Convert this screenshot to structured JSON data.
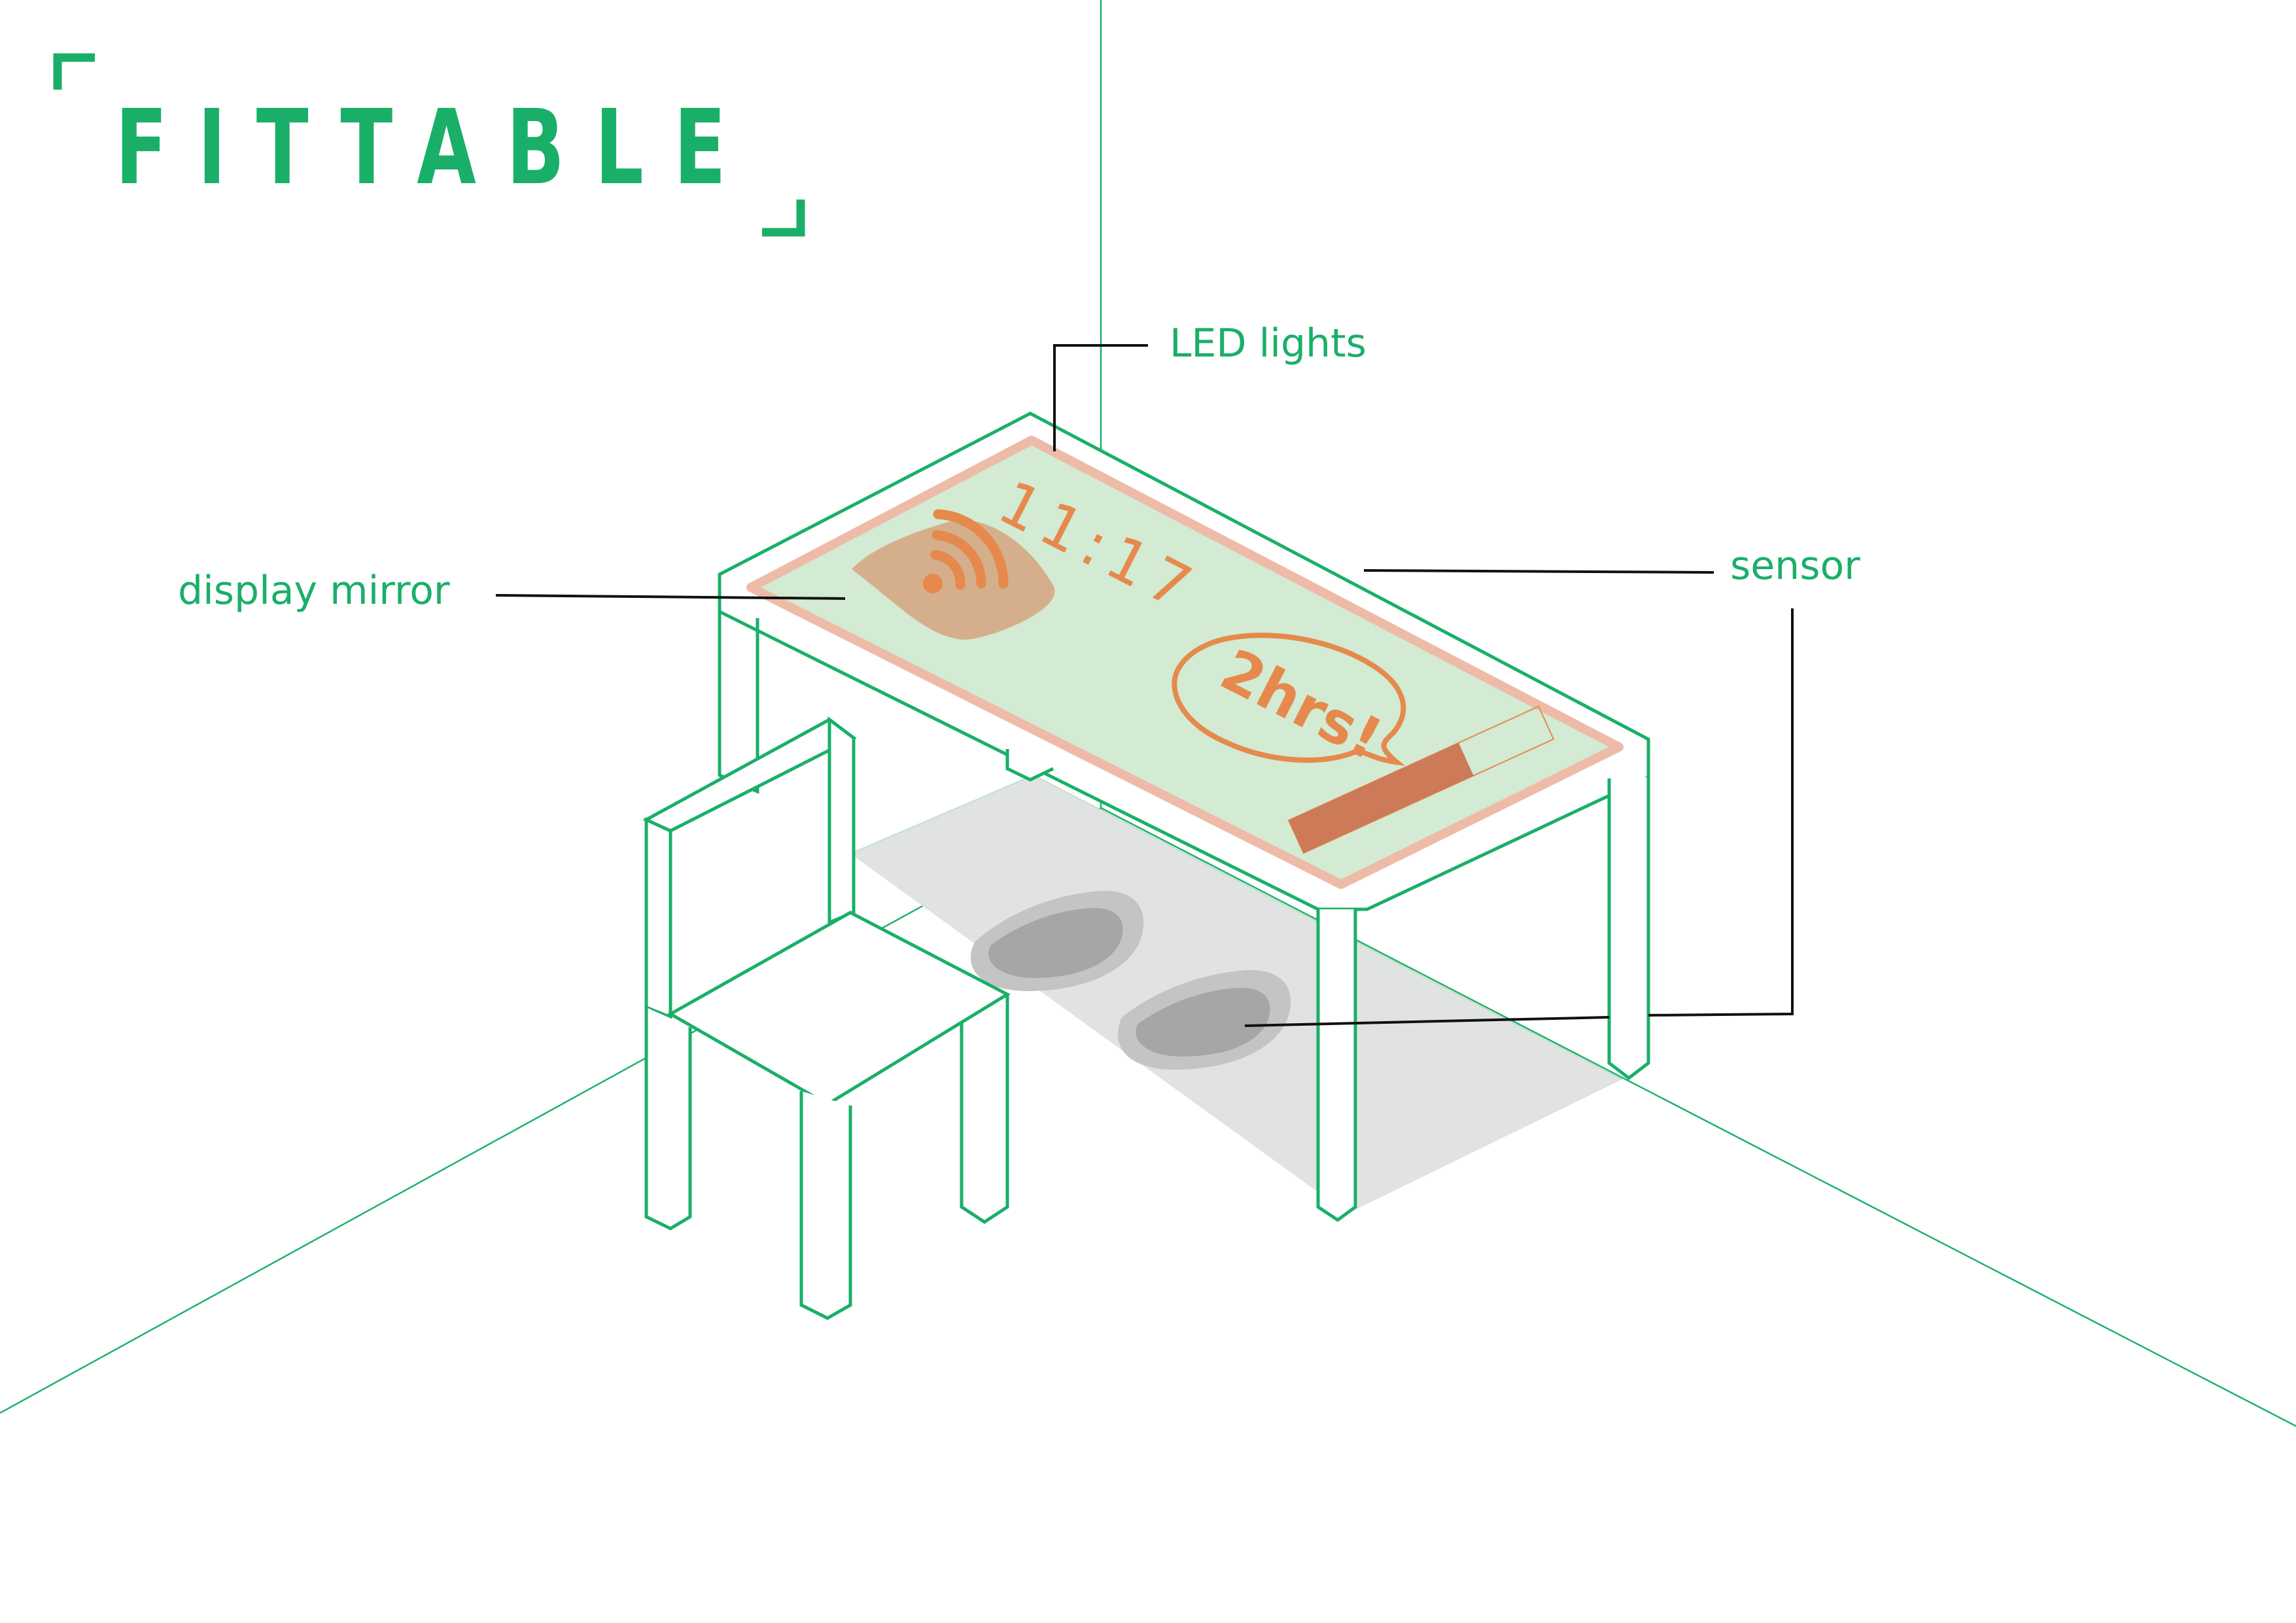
{
  "logo": {
    "text": "FITTABLE",
    "color": "#1aaf68"
  },
  "labels": {
    "led": "LED lights",
    "mirror": "display mirror",
    "sensor": "sensor"
  },
  "display": {
    "time": "11:17",
    "message": "2hrs!",
    "wifi_icon": "wifi-icon",
    "progress_fraction": 0.68
  },
  "colors": {
    "primary_green": "#1aaf68",
    "display_fill": "#d3ead3",
    "led_border": "#eebba8",
    "accent_orange": "#e58a4c",
    "progress_fill": "#cd7a59",
    "floor_shadow": "#e0e3e1",
    "footprint": "#a8a8a8",
    "leader_line": "#111111"
  }
}
